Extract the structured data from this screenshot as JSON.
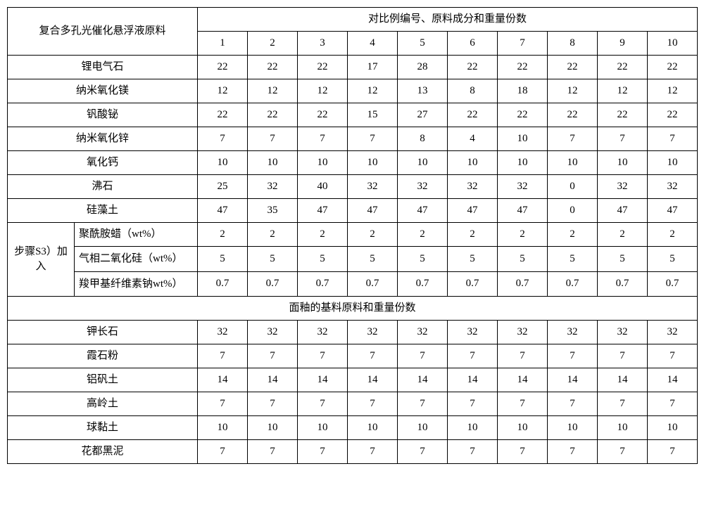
{
  "header": {
    "left_label": "复合多孔光催化悬浮液原料",
    "right_label": "对比例编号、原料成分和重量份数",
    "cols": [
      "1",
      "2",
      "3",
      "4",
      "5",
      "6",
      "7",
      "8",
      "9",
      "10"
    ]
  },
  "rows_top": [
    {
      "label": "锂电气石",
      "vals": [
        "22",
        "22",
        "22",
        "17",
        "28",
        "22",
        "22",
        "22",
        "22",
        "22"
      ]
    },
    {
      "label": "纳米氧化镁",
      "vals": [
        "12",
        "12",
        "12",
        "12",
        "13",
        "8",
        "18",
        "12",
        "12",
        "12"
      ]
    },
    {
      "label": "钒酸铋",
      "vals": [
        "22",
        "22",
        "22",
        "15",
        "27",
        "22",
        "22",
        "22",
        "22",
        "22"
      ]
    },
    {
      "label": "纳米氧化锌",
      "vals": [
        "7",
        "7",
        "7",
        "7",
        "8",
        "4",
        "10",
        "7",
        "7",
        "7"
      ]
    },
    {
      "label": "氧化钙",
      "vals": [
        "10",
        "10",
        "10",
        "10",
        "10",
        "10",
        "10",
        "10",
        "10",
        "10"
      ]
    },
    {
      "label": "沸石",
      "vals": [
        "25",
        "32",
        "40",
        "32",
        "32",
        "32",
        "32",
        "0",
        "32",
        "32"
      ]
    },
    {
      "label": "硅藻土",
      "vals": [
        "47",
        "35",
        "47",
        "47",
        "47",
        "47",
        "47",
        "0",
        "47",
        "47"
      ]
    }
  ],
  "s3_group": {
    "group_label": "步骤S3）加入",
    "rows": [
      {
        "label": "聚酰胺蜡（wt%）",
        "vals": [
          "2",
          "2",
          "2",
          "2",
          "2",
          "2",
          "2",
          "2",
          "2",
          "2"
        ]
      },
      {
        "label": "气相二氧化硅（wt%）",
        "vals": [
          "5",
          "5",
          "5",
          "5",
          "5",
          "5",
          "5",
          "5",
          "5",
          "5"
        ]
      },
      {
        "label": "羧甲基纤维素钠wt%）",
        "vals": [
          "0.7",
          "0.7",
          "0.7",
          "0.7",
          "0.7",
          "0.7",
          "0.7",
          "0.7",
          "0.7",
          "0.7"
        ]
      }
    ]
  },
  "section2_header": "面釉的基料原料和重量份数",
  "rows_bottom": [
    {
      "label": "钾长石",
      "vals": [
        "32",
        "32",
        "32",
        "32",
        "32",
        "32",
        "32",
        "32",
        "32",
        "32"
      ]
    },
    {
      "label": "霞石粉",
      "vals": [
        "7",
        "7",
        "7",
        "7",
        "7",
        "7",
        "7",
        "7",
        "7",
        "7"
      ]
    },
    {
      "label": "铝矾土",
      "vals": [
        "14",
        "14",
        "14",
        "14",
        "14",
        "14",
        "14",
        "14",
        "14",
        "14"
      ]
    },
    {
      "label": "高岭土",
      "vals": [
        "7",
        "7",
        "7",
        "7",
        "7",
        "7",
        "7",
        "7",
        "7",
        "7"
      ]
    },
    {
      "label": "球黏土",
      "vals": [
        "10",
        "10",
        "10",
        "10",
        "10",
        "10",
        "10",
        "10",
        "10",
        "10"
      ]
    },
    {
      "label": "花都黑泥",
      "vals": [
        "7",
        "7",
        "7",
        "7",
        "7",
        "7",
        "7",
        "7",
        "7",
        "7"
      ]
    }
  ]
}
